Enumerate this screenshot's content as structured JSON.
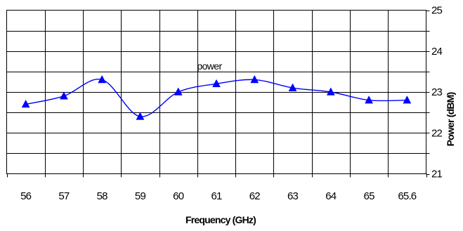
{
  "chart_data": {
    "type": "line",
    "title": "",
    "xlabel": "Frequency (GHz)",
    "ylabel": "Power (dBM)",
    "categories": [
      "56",
      "57",
      "58",
      "59",
      "60",
      "61",
      "62",
      "63",
      "64",
      "65",
      "65.6"
    ],
    "series": [
      {
        "name": "power",
        "values": [
          22.7,
          22.9,
          23.3,
          22.4,
          23.0,
          23.2,
          23.3,
          23.1,
          23.0,
          22.8,
          22.8
        ],
        "color": "#0000ff",
        "marker": "triangle",
        "smooth": true
      }
    ],
    "ylim": [
      21,
      25
    ],
    "yticks": [
      "21",
      "22",
      "23",
      "24",
      "25"
    ],
    "y_axis_side": "right",
    "grid": true,
    "annotation": "power"
  }
}
